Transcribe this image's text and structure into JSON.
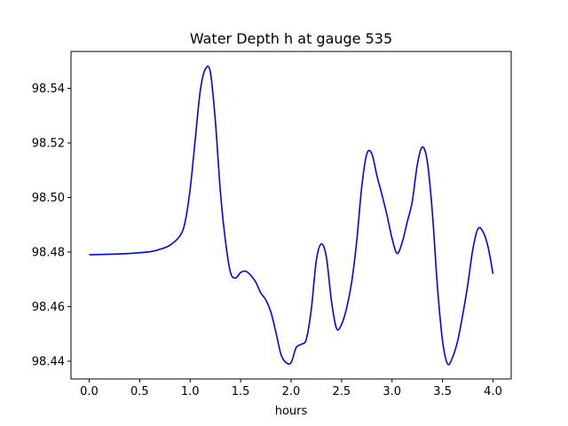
{
  "chart_data": {
    "type": "line",
    "title": "Water Depth h at gauge 535",
    "xlabel": "hours",
    "ylabel": "",
    "xlim": [
      -0.18,
      4.18
    ],
    "ylim": [
      98.4335,
      98.5535
    ],
    "xticks": [
      0.0,
      0.5,
      1.0,
      1.5,
      2.0,
      2.5,
      3.0,
      3.5,
      4.0
    ],
    "xtick_labels": [
      "0.0",
      "0.5",
      "1.0",
      "1.5",
      "2.0",
      "2.5",
      "3.0",
      "3.5",
      "4.0"
    ],
    "yticks": [
      98.44,
      98.46,
      98.48,
      98.5,
      98.52,
      98.54
    ],
    "ytick_labels": [
      "98.44",
      "98.46",
      "98.48",
      "98.50",
      "98.52",
      "98.54"
    ],
    "grid": false,
    "series": [
      {
        "color": "#0000ff",
        "x": [
          0.0,
          0.2,
          0.4,
          0.6,
          0.7,
          0.8,
          0.9,
          0.95,
          1.0,
          1.05,
          1.1,
          1.15,
          1.2,
          1.25,
          1.3,
          1.35,
          1.4,
          1.45,
          1.5,
          1.55,
          1.6,
          1.65,
          1.7,
          1.75,
          1.8,
          1.85,
          1.9,
          1.95,
          2.0,
          2.05,
          2.1,
          2.15,
          2.2,
          2.25,
          2.3,
          2.35,
          2.4,
          2.45,
          2.5,
          2.55,
          2.6,
          2.65,
          2.7,
          2.75,
          2.8,
          2.85,
          2.9,
          2.95,
          3.0,
          3.05,
          3.1,
          3.15,
          3.2,
          3.25,
          3.3,
          3.35,
          3.4,
          3.45,
          3.5,
          3.55,
          3.6,
          3.65,
          3.7,
          3.75,
          3.8,
          3.85,
          3.9,
          3.95,
          4.0
        ],
        "y": [
          98.479,
          98.4792,
          98.4795,
          98.4801,
          98.481,
          98.4825,
          98.486,
          98.491,
          98.503,
          98.521,
          98.539,
          98.547,
          98.546,
          98.528,
          98.502,
          98.484,
          98.4725,
          98.4705,
          98.4725,
          98.473,
          98.4715,
          98.469,
          98.465,
          98.4625,
          98.458,
          98.4505,
          98.4425,
          98.4395,
          98.4395,
          98.445,
          98.4462,
          98.448,
          98.459,
          98.477,
          98.483,
          98.478,
          98.462,
          98.452,
          98.4535,
          98.4595,
          98.469,
          98.484,
          98.504,
          98.516,
          98.516,
          98.508,
          98.501,
          98.4935,
          98.485,
          98.4795,
          98.4835,
          98.491,
          98.4985,
          98.512,
          98.5185,
          98.513,
          98.494,
          98.467,
          98.4475,
          98.439,
          98.4415,
          98.4475,
          98.457,
          98.468,
          98.481,
          98.4885,
          98.4875,
          98.482,
          98.472
        ]
      }
    ]
  }
}
